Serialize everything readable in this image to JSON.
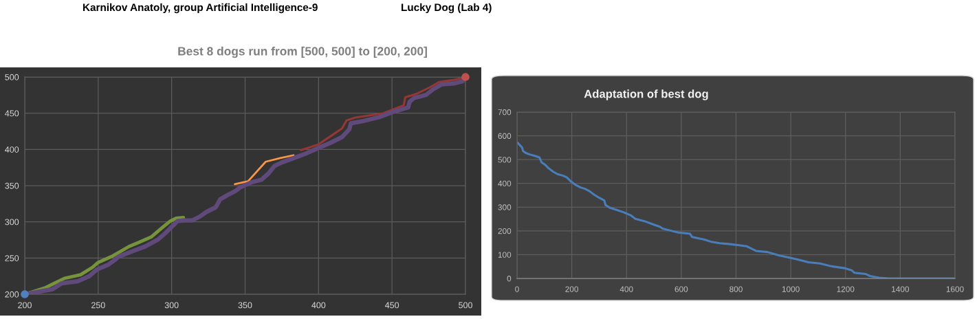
{
  "chart_data": [
    {
      "type": "line",
      "title": "Best 8 dogs run from [500, 500] to [200, 200]",
      "annotations": [
        "Karnikov Anatoly, group Artificial Intelligence-9",
        "Lucky Dog (Lab 4)"
      ],
      "xlim": [
        200,
        500
      ],
      "ylim": [
        200,
        500
      ],
      "xticks": [
        200,
        250,
        300,
        350,
        400,
        450,
        500
      ],
      "yticks": [
        200,
        250,
        300,
        350,
        400,
        450,
        500
      ],
      "grid": true,
      "series": [
        {
          "color": "#77933c",
          "x": [
            200,
            214,
            227,
            238,
            246,
            250,
            260,
            271,
            278,
            286,
            293,
            299,
            303,
            308
          ],
          "values": [
            200,
            209,
            222,
            227,
            237,
            244,
            253,
            266,
            272,
            279,
            291,
            301,
            305,
            306
          ]
        },
        {
          "color": "#f79646",
          "x": [
            343,
            352,
            364,
            374,
            383
          ],
          "values": [
            352,
            356,
            383,
            388,
            392
          ]
        },
        {
          "color": "#953735",
          "x": [
            388,
            400,
            408,
            416,
            419,
            425,
            444,
            458,
            459,
            467,
            476,
            482,
            492,
            499
          ],
          "values": [
            399,
            407,
            418,
            429,
            440,
            444,
            450,
            461,
            472,
            477,
            486,
            493,
            496,
            499
          ]
        },
        {
          "color": "#604a7b",
          "x": [
            200,
            208,
            219,
            225,
            236,
            244,
            249,
            257,
            261,
            264,
            274,
            282,
            291,
            296,
            300,
            304,
            308,
            314,
            319,
            324,
            330,
            333,
            338,
            343,
            347,
            355,
            361,
            366,
            370,
            375,
            383,
            391,
            400,
            408,
            416,
            421,
            422,
            430,
            442,
            451,
            461,
            462,
            465,
            473,
            478,
            484,
            492,
            498,
            500
          ],
          "values": [
            200,
            203,
            207,
            215,
            218,
            225,
            234,
            241,
            247,
            252,
            260,
            266,
            276,
            285,
            293,
            301,
            302,
            302,
            307,
            314,
            320,
            331,
            337,
            342,
            348,
            355,
            358,
            367,
            377,
            382,
            388,
            394,
            402,
            409,
            417,
            428,
            436,
            439,
            445,
            452,
            458,
            466,
            471,
            475,
            483,
            490,
            491,
            494,
            500
          ]
        },
        {
          "type": "scatter",
          "marker": "circle",
          "color": "#4f81bd",
          "x": [
            200
          ],
          "values": [
            200
          ]
        },
        {
          "type": "scatter",
          "marker": "circle",
          "color": "#c0504d",
          "x": [
            500
          ],
          "values": [
            500
          ]
        }
      ]
    },
    {
      "type": "line",
      "title": "Adaptation of best dog",
      "xlim": [
        0,
        1600
      ],
      "ylim": [
        0,
        700
      ],
      "xticks": [
        0,
        200,
        400,
        600,
        800,
        1000,
        1200,
        1400,
        1600
      ],
      "yticks": [
        0,
        100,
        200,
        300,
        400,
        500,
        600,
        700
      ],
      "grid": true,
      "series": [
        {
          "color": "#4a7ebb",
          "x": [
            0,
            11,
            19,
            22,
            32,
            48,
            61,
            82,
            90,
            103,
            115,
            132,
            148,
            169,
            182,
            198,
            215,
            232,
            248,
            265,
            282,
            298,
            319,
            323,
            340,
            365,
            390,
            415,
            432,
            465,
            498,
            523,
            532,
            565,
            590,
            632,
            640,
            682,
            707,
            740,
            773,
            807,
            840,
            873,
            915,
            957,
            998,
            1023,
            1065,
            1107,
            1149,
            1198,
            1223,
            1232,
            1273,
            1290,
            1323,
            1357,
            1600
          ],
          "values": [
            573,
            560,
            550,
            536,
            528,
            521,
            517,
            509,
            488,
            478,
            464,
            449,
            439,
            432,
            425,
            407,
            393,
            383,
            377,
            367,
            352,
            341,
            328,
            309,
            297,
            288,
            278,
            266,
            251,
            241,
            227,
            217,
            210,
            200,
            193,
            188,
            174,
            164,
            155,
            148,
            145,
            140,
            135,
            116,
            111,
            97,
            87,
            80,
            68,
            63,
            51,
            43,
            34,
            24,
            19,
            10,
            3,
            0,
            0
          ]
        }
      ]
    }
  ]
}
